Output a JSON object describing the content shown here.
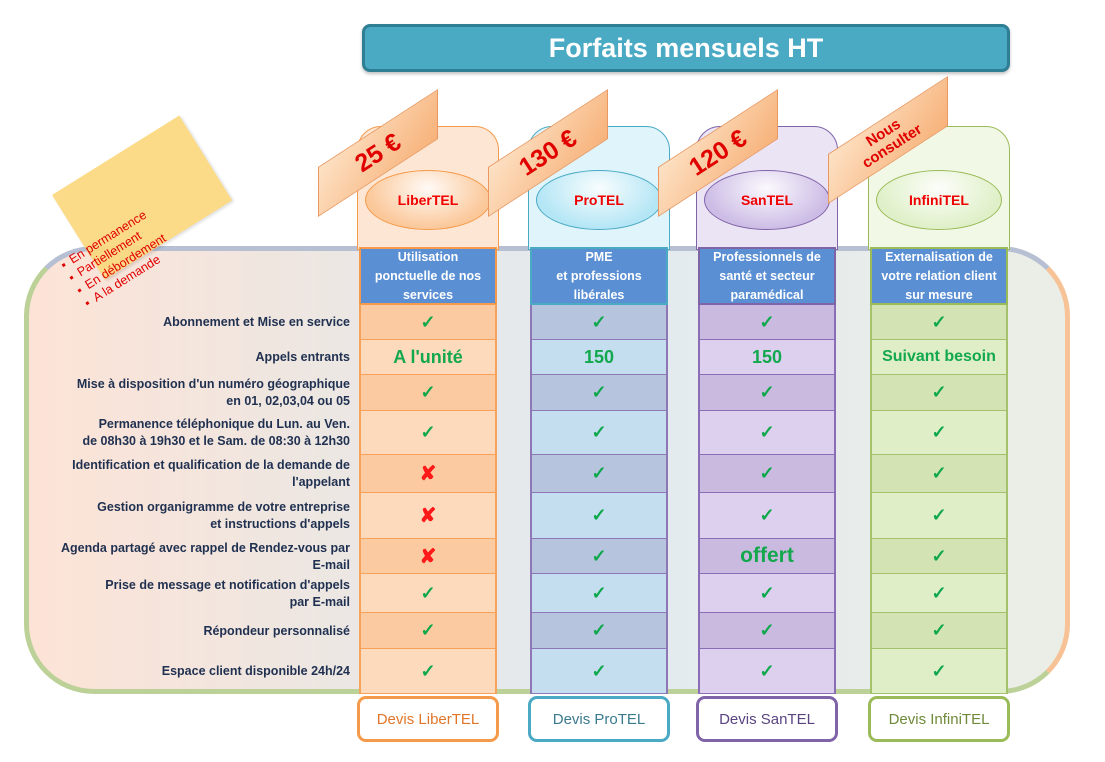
{
  "title": "Forfaits mensuels HT",
  "sticky_note": {
    "items": [
      "En permanence",
      "Partiellement",
      "En débordement",
      "A la demande"
    ]
  },
  "features": [
    "Abonnement et Mise en service",
    "Appels entrants",
    "Mise à disposition d'un numéro géographique en 01, 02,03,04 ou 05",
    "Permanence téléphonique du Lun. au Ven. de  08h30 à 19h30 et le Sam. de 08:30 à 12h30",
    "Identification et qualification de la demande de l'appelant",
    "Gestion organigramme de votre entreprise et instructions d'appels",
    "Agenda partagé avec rappel de Rendez-vous par E-mail",
    "Prise de message et notification d'appels par E-mail",
    "Répondeur personnalisé",
    "Espace client disponible 24h/24"
  ],
  "feature_lines": [
    [
      "Abonnement et Mise en service"
    ],
    [
      "Appels entrants"
    ],
    [
      "Mise à disposition d'un numéro géographique",
      "en 01, 02,03,04  ou 05"
    ],
    [
      "Permanence téléphonique du Lun. au Ven.",
      "de  08h30 à 19h30 et le Sam. de 08:30 à 12h30"
    ],
    [
      "Identification et qualification de la demande de",
      "l'appelant"
    ],
    [
      "Gestion organigramme de votre entreprise",
      "et instructions d'appels"
    ],
    [
      "Agenda partagé avec rappel de Rendez-vous par",
      "E-mail"
    ],
    [
      "Prise de message et notification d'appels",
      "par E-mail"
    ],
    [
      "Répondeur personnalisé"
    ],
    [
      "Espace client disponible 24h/24"
    ]
  ],
  "plans": [
    {
      "name": "LiberTEL",
      "price": "25 €",
      "description": [
        "Utilisation",
        "ponctuelle de nos",
        "services"
      ],
      "values": [
        "check",
        "A l'unité",
        "check",
        "check",
        "cross",
        "cross",
        "cross",
        "check",
        "check",
        "check"
      ],
      "button": "Devis LiberTEL",
      "colors": {
        "border": "#f59a4a",
        "top": "#fde6d3",
        "oval": "#fbc89a",
        "row_a": "#fccaa0",
        "row_b": "#fedabd",
        "line": "#f7a25a",
        "btn_text": "#e0762a"
      }
    },
    {
      "name": "ProTEL",
      "price": "130 €",
      "description": [
        "PME",
        "et professions",
        "libérales"
      ],
      "values": [
        "check",
        "150",
        "check",
        "check",
        "check",
        "check",
        "check",
        "check",
        "check",
        "check"
      ],
      "button": "Devis ProTEL",
      "colors": {
        "border": "#4aaac4",
        "top": "#dff4fb",
        "oval": "#b4e6f5",
        "row_a": "#b7c4de",
        "row_b": "#c4def0",
        "line": "#8e77b7",
        "btn_text": "#3a7a8e"
      }
    },
    {
      "name": "SanTEL",
      "price": "120 €",
      "description": [
        "Professionnels de",
        "santé et secteur",
        "paramédical"
      ],
      "values": [
        "check",
        "150",
        "check",
        "check",
        "check",
        "check",
        "offert",
        "check",
        "check",
        "check"
      ],
      "button": "Devis SanTEL",
      "colors": {
        "border": "#8064a8",
        "top": "#ebe4f5",
        "oval": "#cdbde6",
        "row_a": "#cbbadf",
        "row_b": "#ddd0ef",
        "line": "#8a6db5",
        "btn_text": "#5a4480"
      }
    },
    {
      "name": "InfiniTEL",
      "price": "Nous consulter",
      "description": [
        "Externalisation de",
        "votre relation client",
        "sur mesure"
      ],
      "values": [
        "check",
        "Suivant besoin",
        "check",
        "check",
        "check",
        "check",
        "check",
        "check",
        "check",
        "check"
      ],
      "button": "Devis InfiniTEL",
      "colors": {
        "border": "#9bbb59",
        "top": "#f1f8e6",
        "oval": "#dff0c8",
        "row_a": "#d3e3b4",
        "row_b": "#e0eec8",
        "line": "#a4c26c",
        "btn_text": "#6f8a3a"
      }
    }
  ],
  "icons": {
    "check": "✓",
    "cross": "✘"
  }
}
